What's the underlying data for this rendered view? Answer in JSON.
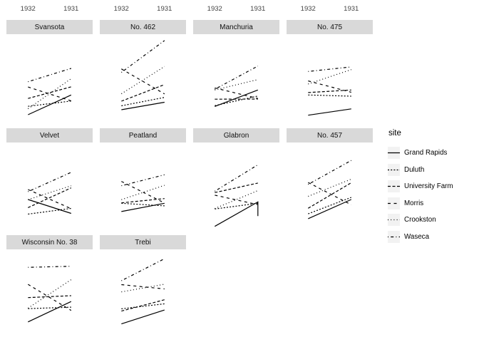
{
  "colors": {
    "line": "#000000",
    "strip_fill": "#d9d9d9",
    "axis_text": "#444444",
    "legend_key_fill": "#f2f2f2",
    "background": "#ffffff"
  },
  "chart_data": {
    "type": "line",
    "title": "",
    "xlabel": "",
    "ylabel": "",
    "x_categories": [
      "1932",
      "1931"
    ],
    "ylim": [
      10,
      70
    ],
    "grid": "off",
    "axis_labels_position": "top",
    "legend_position": "right",
    "legend_title": "site",
    "sites": [
      {
        "name": "Grand Rapids",
        "linetype": "solid"
      },
      {
        "name": "Duluth",
        "linetype": "dashed-short"
      },
      {
        "name": "University Farm",
        "linetype": "dashed-medium"
      },
      {
        "name": "Morris",
        "linetype": "dashed-long"
      },
      {
        "name": "Crookston",
        "linetype": "dotted"
      },
      {
        "name": "Waseca",
        "linetype": "dotdash"
      }
    ],
    "facets": [
      {
        "variety": "Svansota",
        "series": [
          {
            "site": "Grand Rapids",
            "values": [
              16.6,
              29.7
            ]
          },
          {
            "site": "Duluth",
            "values": [
              22.2,
              25.7
            ]
          },
          {
            "site": "University Farm",
            "values": [
              27.4,
              35.1
            ]
          },
          {
            "site": "Morris",
            "values": [
              35.0,
              25.8
            ]
          },
          {
            "site": "Crookston",
            "values": [
              20.6,
              40.5
            ]
          },
          {
            "site": "Waseca",
            "values": [
              38.5,
              47.3
            ]
          }
        ]
      },
      {
        "variety": "No. 462",
        "series": [
          {
            "site": "Grand Rapids",
            "values": [
              19.9,
              24.9
            ]
          },
          {
            "site": "Duluth",
            "values": [
              22.5,
              28.1
            ]
          },
          {
            "site": "University Farm",
            "values": [
              25.6,
              36.6
            ]
          },
          {
            "site": "Morris",
            "values": [
              47.0,
              30.4
            ]
          },
          {
            "site": "Crookston",
            "values": [
              30.5,
              48.6
            ]
          },
          {
            "site": "Waseca",
            "values": [
              44.7,
              65.8
            ]
          }
        ]
      },
      {
        "variety": "Manchuria",
        "series": [
          {
            "site": "Grand Rapids",
            "values": [
              22.1,
              33.0
            ]
          },
          {
            "site": "Duluth",
            "values": [
              22.6,
              29.0
            ]
          },
          {
            "site": "University Farm",
            "values": [
              26.9,
              27.0
            ]
          },
          {
            "site": "Morris",
            "values": [
              34.4,
              27.4
            ]
          },
          {
            "site": "Crookston",
            "values": [
              33.0,
              39.9
            ]
          },
          {
            "site": "Waseca",
            "values": [
              33.5,
              48.9
            ]
          }
        ]
      },
      {
        "variety": "No. 475",
        "series": [
          {
            "site": "Grand Rapids",
            "values": [
              16.3,
              20.5
            ]
          },
          {
            "site": "Duluth",
            "values": [
              29.7,
              28.9
            ]
          },
          {
            "site": "University Farm",
            "values": [
              31.3,
              33.0
            ]
          },
          {
            "site": "Morris",
            "values": [
              39.0,
              31.5
            ]
          },
          {
            "site": "Crookston",
            "values": [
              37.0,
              46.5
            ]
          },
          {
            "site": "Waseca",
            "values": [
              45.3,
              48.3
            ]
          }
        ]
      },
      {
        "variety": "Velvet",
        "series": [
          {
            "site": "Grand Rapids",
            "values": [
              32.2,
              23.0
            ]
          },
          {
            "site": "Duluth",
            "values": [
              22.5,
              26.3
            ]
          },
          {
            "site": "University Farm",
            "values": [
              26.8,
              39.9
            ]
          },
          {
            "site": "Morris",
            "values": [
              38.8,
              26.1
            ]
          },
          {
            "site": "Crookston",
            "values": [
              32.1,
              41.3
            ]
          },
          {
            "site": "Waseca",
            "values": [
              37.4,
              50.2
            ]
          }
        ]
      },
      {
        "variety": "Peatland",
        "series": [
          {
            "site": "Grand Rapids",
            "values": [
              24.2,
              29.7
            ]
          },
          {
            "site": "Duluth",
            "values": [
              29.7,
              28.0
            ]
          },
          {
            "site": "University Farm",
            "values": [
              30.0,
              32.8
            ]
          },
          {
            "site": "Morris",
            "values": [
              44.2,
              29.9
            ]
          },
          {
            "site": "Crookston",
            "values": [
              32.1,
              41.6
            ]
          },
          {
            "site": "Waseca",
            "values": [
              41.3,
              48.6
            ]
          }
        ]
      },
      {
        "variety": "Glabron",
        "series": [
          {
            "site": "Grand Rapids",
            "values": [
              14.4,
              30.6
            ],
            "drop_to": 21.2
          },
          {
            "site": "Duluth",
            "values": [
              25.9,
              29.7
            ]
          },
          {
            "site": "University Farm",
            "values": [
              36.8,
              43.1
            ]
          },
          {
            "site": "Morris",
            "values": [
              35.1,
              28.8
            ]
          },
          {
            "site": "Crookston",
            "values": [
              26.2,
              38.1
            ]
          },
          {
            "site": "Waseca",
            "values": [
              37.7,
              55.2
            ]
          }
        ]
      },
      {
        "variety": "No. 457",
        "series": [
          {
            "site": "Grand Rapids",
            "values": [
              19.5,
              32.2
            ]
          },
          {
            "site": "Duluth",
            "values": [
              22.7,
              33.6
            ]
          },
          {
            "site": "University Farm",
            "values": [
              26.4,
              43.3
            ]
          },
          {
            "site": "Morris",
            "values": [
              43.5,
              28.7
            ]
          },
          {
            "site": "Crookston",
            "values": [
              34.3,
              45.7
            ]
          },
          {
            "site": "Waseca",
            "values": [
              42.2,
              58.1
            ]
          }
        ]
      },
      {
        "variety": "Wisconsin No. 38",
        "series": [
          {
            "site": "Grand Rapids",
            "values": [
              21.9,
              35.4
            ]
          },
          {
            "site": "Duluth",
            "values": [
              30.7,
              31.7
            ]
          },
          {
            "site": "University Farm",
            "values": [
              38.0,
              39.3
            ]
          },
          {
            "site": "Morris",
            "values": [
              46.8,
              29.5
            ]
          },
          {
            "site": "Crookston",
            "values": [
              31.0,
              49.9
            ]
          },
          {
            "site": "Waseca",
            "values": [
              58.1,
              58.8
            ]
          }
        ]
      },
      {
        "variety": "Trebi",
        "series": [
          {
            "site": "Grand Rapids",
            "values": [
              20.6,
              29.8
            ]
          },
          {
            "site": "Duluth",
            "values": [
              30.6,
              33.9
            ]
          },
          {
            "site": "University Farm",
            "values": [
              29.1,
              36.6
            ]
          },
          {
            "site": "Morris",
            "values": [
              46.6,
              43.8
            ]
          },
          {
            "site": "Crookston",
            "values": [
              41.8,
              46.9
            ]
          },
          {
            "site": "Waseca",
            "values": [
              49.2,
              63.8
            ]
          }
        ]
      }
    ]
  },
  "legend": {
    "title": "site"
  }
}
